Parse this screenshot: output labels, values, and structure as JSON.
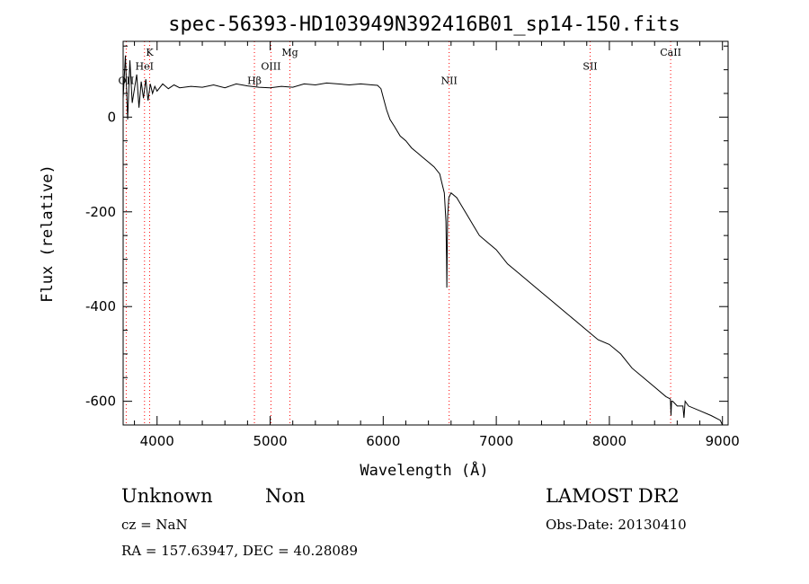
{
  "chart_data": {
    "type": "line",
    "title": "spec-56393-HD103949N392416B01_sp14-150.fits",
    "xlabel": "Wavelength (Å)",
    "ylabel": "Flux (relative)",
    "xlim": [
      3700,
      9050
    ],
    "ylim": [
      -650,
      160
    ],
    "xticks": [
      4000,
      5000,
      6000,
      7000,
      8000,
      9000
    ],
    "yticks": [
      0,
      -200,
      -400,
      -600
    ],
    "xtick_labels": [
      "4000",
      "5000",
      "6000",
      "7000",
      "8000",
      "9000"
    ],
    "ytick_labels": [
      "0",
      "-200",
      "-400",
      "-600"
    ],
    "grid": false,
    "line_color": "#000000",
    "marker_color": "#ff0000",
    "series": [
      {
        "x": [
          3700,
          3720,
          3740,
          3760,
          3780,
          3800,
          3820,
          3840,
          3860,
          3880,
          3900,
          3920,
          3940,
          3960,
          3980,
          4000,
          4050,
          4100,
          4150,
          4200,
          4300,
          4400,
          4500,
          4600,
          4700,
          4800,
          4900,
          5000,
          5100,
          5200,
          5300,
          5400,
          5500,
          5600,
          5700,
          5800,
          5900,
          5950,
          5980,
          6000,
          6030,
          6060,
          6100,
          6150,
          6200,
          6250,
          6300,
          6350,
          6400,
          6450,
          6500,
          6520,
          6540,
          6555,
          6560,
          6563,
          6566,
          6570,
          6580,
          6600,
          6650,
          6700,
          6750,
          6800,
          6850,
          6900,
          7000,
          7100,
          7200,
          7300,
          7400,
          7500,
          7600,
          7700,
          7800,
          7900,
          8000,
          8100,
          8200,
          8300,
          8400,
          8500,
          8540,
          8545,
          8550,
          8560,
          8600,
          8650,
          8660,
          8670,
          8700,
          8800,
          8900,
          8980,
          9000
        ],
        "y": [
          40,
          130,
          -5,
          120,
          30,
          60,
          90,
          20,
          75,
          40,
          80,
          35,
          70,
          50,
          65,
          55,
          70,
          60,
          68,
          62,
          65,
          63,
          68,
          62,
          70,
          66,
          63,
          62,
          65,
          63,
          70,
          68,
          72,
          70,
          68,
          70,
          68,
          67,
          60,
          42,
          15,
          -5,
          -20,
          -40,
          -50,
          -65,
          -75,
          -85,
          -95,
          -105,
          -120,
          -140,
          -160,
          -220,
          -300,
          -360,
          -280,
          -210,
          -170,
          -160,
          -170,
          -190,
          -210,
          -230,
          -250,
          -260,
          -280,
          -310,
          -330,
          -350,
          -370,
          -390,
          -410,
          -430,
          -450,
          -470,
          -480,
          -500,
          -530,
          -550,
          -570,
          -590,
          -595,
          -630,
          -600,
          -600,
          -610,
          -610,
          -635,
          -600,
          -610,
          -620,
          -630,
          -640,
          -650
        ]
      }
    ],
    "lines": [
      {
        "label": "OII",
        "x": 3727,
        "label_y": 70
      },
      {
        "label": "HeI",
        "x": 3889,
        "label_y": 100
      },
      {
        "label": "K",
        "x": 3934,
        "label_y": 130
      },
      {
        "label": "Hβ",
        "x": 4861,
        "label_y": 70
      },
      {
        "label": "OIII",
        "x": 5007,
        "label_y": 100
      },
      {
        "label": "Mg",
        "x": 5175,
        "label_y": 130
      },
      {
        "label": "NII",
        "x": 6583,
        "label_y": 70
      },
      {
        "label": "SII",
        "x": 7830,
        "label_y": 100
      },
      {
        "label": "CaII",
        "x": 8542,
        "label_y": 130
      }
    ]
  },
  "info": {
    "object_class": "Unknown",
    "subclass": "Non",
    "survey": "LAMOST DR2",
    "cz": "cz = NaN",
    "obs_date": "Obs-Date: 20130410",
    "coords": "RA = 157.63947, DEC =  40.28089"
  }
}
